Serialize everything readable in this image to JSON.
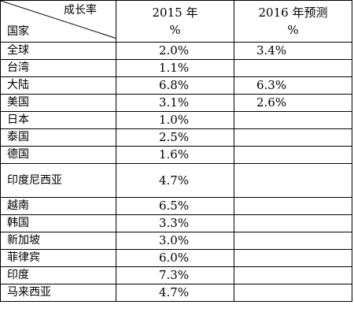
{
  "header": {
    "diag_top": "成长率",
    "diag_bottom": "国家",
    "col2_line1": "2015 年",
    "col2_line2": "%",
    "col3_line1": "2016 年预测",
    "col3_line2": "%"
  },
  "rows": [
    {
      "country": "全球",
      "y2015": "2.0%",
      "y2016": "3.4%"
    },
    {
      "country": "台湾",
      "y2015": "1.1%",
      "y2016": ""
    },
    {
      "country": "大陆",
      "y2015": "6.8%",
      "y2016": "6.3%"
    },
    {
      "country": "美国",
      "y2015": "3.1%",
      "y2016": "2.6%"
    },
    {
      "country": "日本",
      "y2015": "1.0%",
      "y2016": ""
    },
    {
      "country": "泰国",
      "y2015": "2.5%",
      "y2016": ""
    },
    {
      "country": "德国",
      "y2015": "1.6%",
      "y2016": ""
    },
    {
      "country": "印度尼西亚",
      "y2015": "4.7%",
      "y2016": ""
    },
    {
      "country": "越南",
      "y2015": "6.5%",
      "y2016": ""
    },
    {
      "country": "韩国",
      "y2015": "3.3%",
      "y2016": ""
    },
    {
      "country": "新加坡",
      "y2015": "3.0%",
      "y2016": ""
    },
    {
      "country": "菲律宾",
      "y2015": "6.0%",
      "y2016": ""
    },
    {
      "country": "印度",
      "y2015": "7.3%",
      "y2016": ""
    },
    {
      "country": "马来西亚",
      "y2015": "4.7%",
      "y2016": ""
    }
  ]
}
